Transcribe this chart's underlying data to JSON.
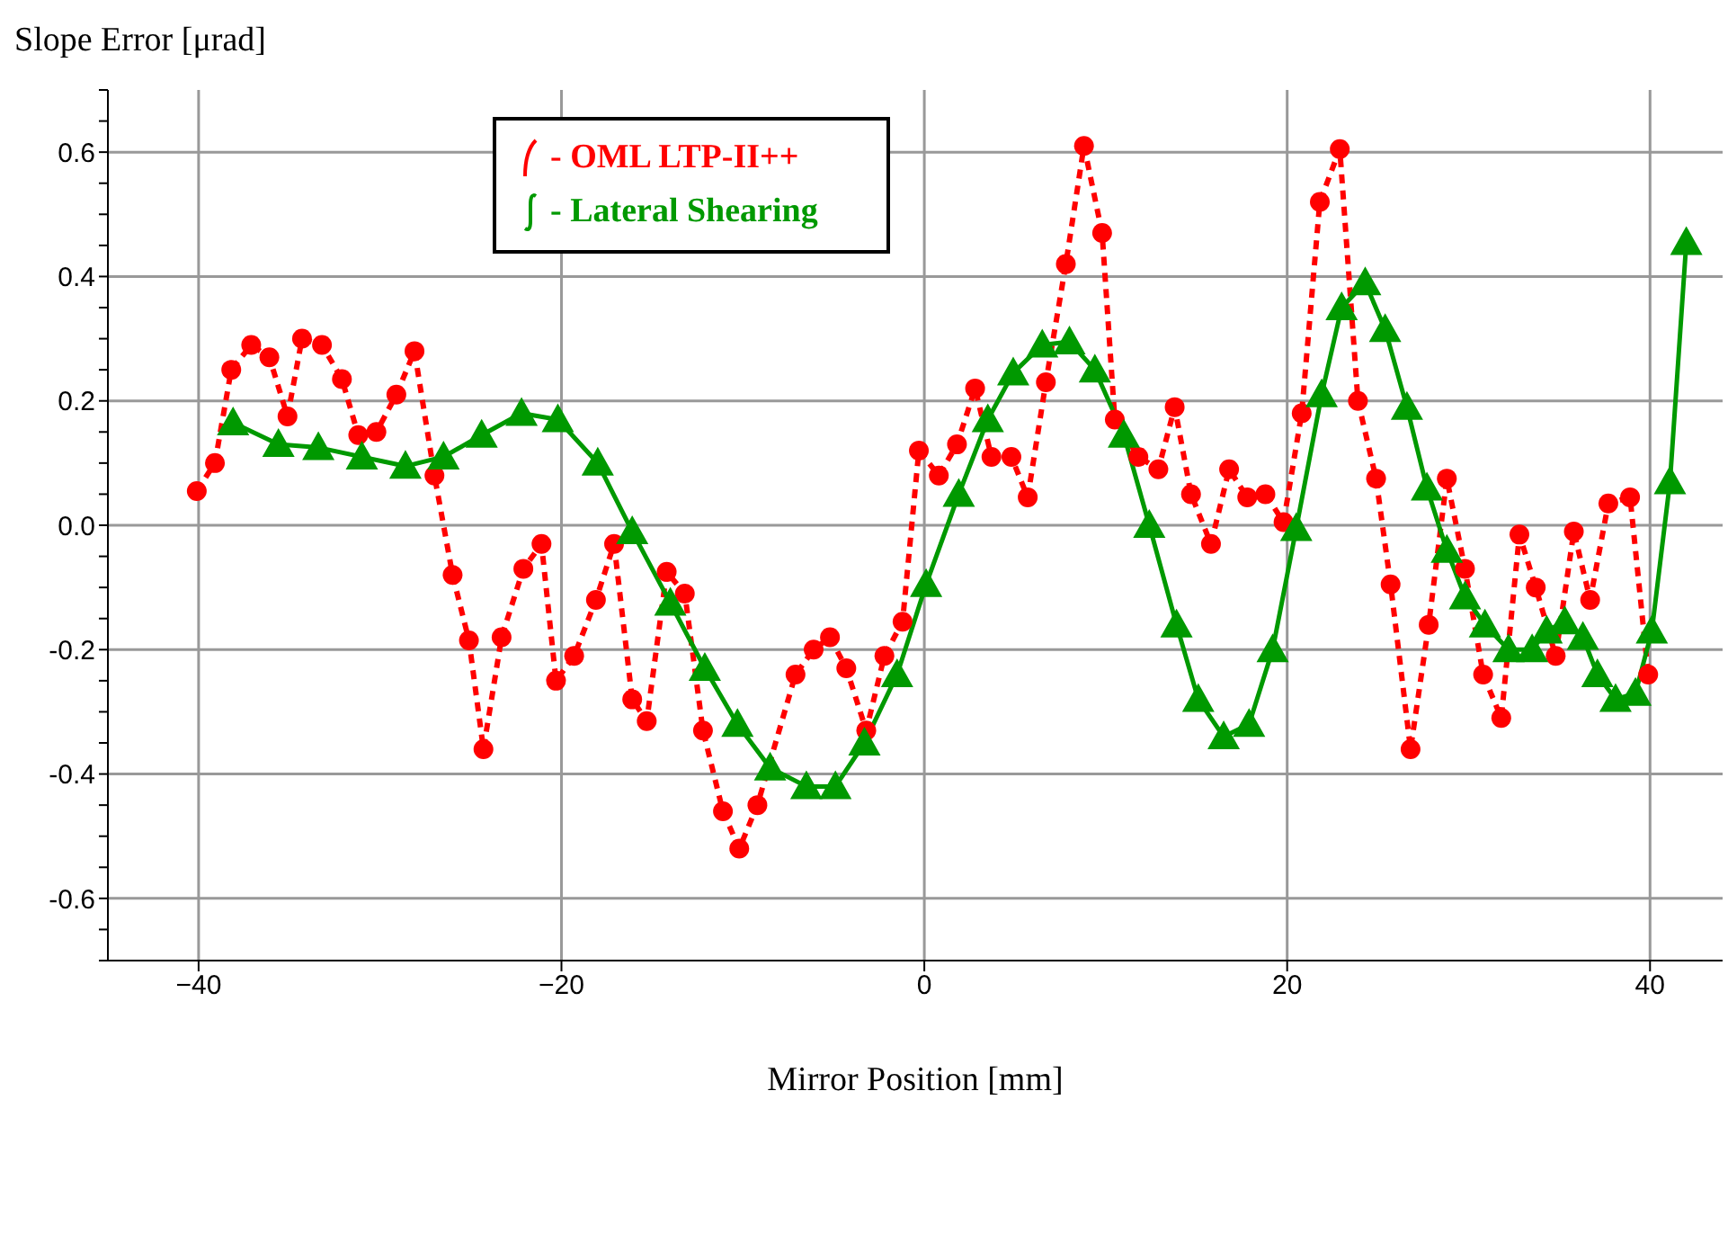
{
  "chart_data": {
    "type": "line",
    "xlabel": "Mirror Position [mm]",
    "ylabel": "Slope Error [μrad]",
    "xlim": [
      -45,
      44
    ],
    "ylim": [
      -0.7,
      0.7
    ],
    "xticks": [
      {
        "value": -40,
        "label": "−40"
      },
      {
        "value": -20,
        "label": "−20"
      },
      {
        "value": 0,
        "label": "0"
      },
      20,
      40
    ],
    "yticks": [
      {
        "value": -0.7,
        "label": null
      },
      {
        "value": -0.65,
        "label": null
      },
      -0.6,
      {
        "value": -0.55,
        "label": null
      },
      {
        "value": -0.5,
        "label": null
      },
      {
        "value": -0.45,
        "label": null
      },
      -0.4,
      {
        "value": -0.35,
        "label": null
      },
      {
        "value": -0.3,
        "label": null
      },
      {
        "value": -0.25,
        "label": null
      },
      -0.2,
      {
        "value": -0.15,
        "label": null
      },
      {
        "value": -0.1,
        "label": null
      },
      {
        "value": -0.05,
        "label": null
      },
      {
        "value": 0,
        "label": "0.0"
      },
      {
        "value": 0.05,
        "label": null
      },
      {
        "value": 0.1,
        "label": null
      },
      {
        "value": 0.15,
        "label": null
      },
      0.2,
      {
        "value": 0.25,
        "label": null
      },
      {
        "value": 0.3,
        "label": null
      },
      {
        "value": 0.35,
        "label": null
      },
      0.4,
      {
        "value": 0.45,
        "label": null
      },
      {
        "value": 0.5,
        "label": null
      },
      {
        "value": 0.55,
        "label": null
      },
      0.6,
      {
        "value": 0.65,
        "label": null
      },
      {
        "value": 0.7,
        "label": null
      }
    ],
    "grid": true,
    "legend": "top",
    "series": [
      {
        "name": "- OML LTP-II++",
        "color": "#ff0000",
        "line_style": "dashed",
        "marker": "circle",
        "x": [
          -40.1,
          -39.1,
          -38.2,
          -37.1,
          -36.1,
          -35.1,
          -34.3,
          -33.2,
          -32.1,
          -31.2,
          -30.2,
          -29.1,
          -28.1,
          -27.0,
          -26.0,
          -25.1,
          -24.3,
          -23.3,
          -22.1,
          -21.1,
          -20.3,
          -19.3,
          -18.1,
          -17.1,
          -16.1,
          -15.3,
          -14.2,
          -13.2,
          -12.2,
          -11.1,
          -10.2,
          -9.2,
          -7.1,
          -6.1,
          -5.2,
          -4.3,
          -3.2,
          -2.2,
          -1.2,
          -0.3,
          0.8,
          1.8,
          2.8,
          3.7,
          4.8,
          5.7,
          6.7,
          7.8,
          8.8,
          9.8,
          10.5,
          11.8,
          12.9,
          13.8,
          14.7,
          15.8,
          16.8,
          17.8,
          18.8,
          19.8,
          20.8,
          21.8,
          22.9,
          23.9,
          24.9,
          25.7,
          26.8,
          27.8,
          28.8,
          29.8,
          30.8,
          31.8,
          32.8,
          33.7,
          34.8,
          35.8,
          36.7,
          37.7,
          38.9,
          39.9
        ],
        "values": [
          0.055,
          0.1,
          0.25,
          0.29,
          0.27,
          0.175,
          0.3,
          0.29,
          0.235,
          0.145,
          0.15,
          0.21,
          0.28,
          0.08,
          -0.08,
          -0.185,
          -0.36,
          -0.18,
          -0.07,
          -0.03,
          -0.25,
          -0.21,
          -0.12,
          -0.03,
          -0.28,
          -0.315,
          -0.075,
          -0.11,
          -0.33,
          -0.46,
          -0.52,
          -0.45,
          -0.24,
          -0.2,
          -0.18,
          -0.23,
          -0.33,
          -0.21,
          -0.155,
          0.12,
          0.08,
          0.13,
          0.22,
          0.11,
          0.11,
          0.045,
          0.23,
          0.42,
          0.61,
          0.47,
          0.17,
          0.11,
          0.09,
          0.19,
          0.05,
          -0.03,
          0.09,
          0.045,
          0.05,
          0.005,
          0.18,
          0.52,
          0.605,
          0.2,
          0.075,
          -0.095,
          -0.36,
          -0.16,
          0.075,
          -0.07,
          -0.24,
          -0.31,
          -0.015,
          -0.1,
          -0.21,
          -0.01,
          -0.12,
          0.035,
          0.045,
          -0.24
        ]
      },
      {
        "name": "- Lateral Shearing",
        "color": "#009900",
        "line_style": "solid",
        "marker": "triangle",
        "x": [
          -38.1,
          -35.6,
          -33.4,
          -31.0,
          -28.6,
          -26.5,
          -24.4,
          -22.2,
          -20.2,
          -18.0,
          -16.1,
          -14.0,
          -12.1,
          -10.3,
          -8.5,
          -6.5,
          -4.9,
          -3.3,
          -1.5,
          0.1,
          1.9,
          3.5,
          4.9,
          6.5,
          8.0,
          9.4,
          11.0,
          12.4,
          13.9,
          15.1,
          16.5,
          17.9,
          19.2,
          20.5,
          21.9,
          23.0,
          24.3,
          25.4,
          26.6,
          27.7,
          28.8,
          29.8,
          30.9,
          32.2,
          33.5,
          34.3,
          35.3,
          36.3,
          37.1,
          38.1,
          39.2,
          40.1,
          41.1,
          42.0
        ],
        "values": [
          0.165,
          0.13,
          0.125,
          0.11,
          0.095,
          0.11,
          0.145,
          0.18,
          0.17,
          0.1,
          -0.01,
          -0.125,
          -0.23,
          -0.32,
          -0.39,
          -0.42,
          -0.42,
          -0.35,
          -0.24,
          -0.095,
          0.05,
          0.17,
          0.245,
          0.29,
          0.295,
          0.25,
          0.145,
          0.0,
          -0.16,
          -0.28,
          -0.34,
          -0.32,
          -0.2,
          -0.005,
          0.21,
          0.35,
          0.39,
          0.315,
          0.19,
          0.06,
          -0.04,
          -0.115,
          -0.16,
          -0.2,
          -0.2,
          -0.17,
          -0.155,
          -0.18,
          -0.24,
          -0.28,
          -0.27,
          -0.17,
          0.07,
          0.455
        ]
      }
    ]
  }
}
